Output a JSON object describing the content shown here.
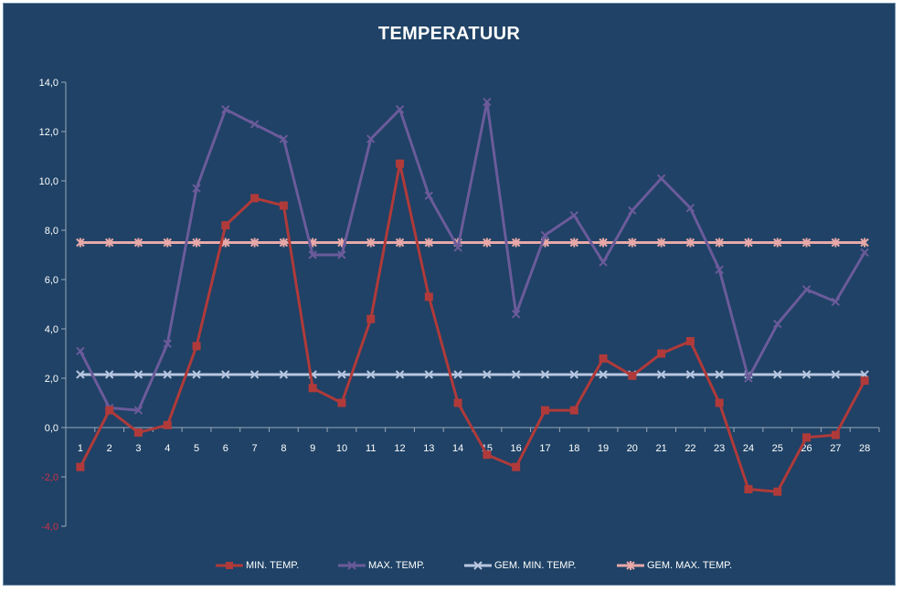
{
  "chart_data": {
    "type": "line",
    "title": "TEMPERATUUR",
    "xlabel": "",
    "ylabel": "",
    "x": [
      1,
      2,
      3,
      4,
      5,
      6,
      7,
      8,
      9,
      10,
      11,
      12,
      13,
      14,
      15,
      16,
      17,
      18,
      19,
      20,
      21,
      22,
      23,
      24,
      25,
      26,
      27,
      28
    ],
    "x_tick_labels": [
      "1",
      "2",
      "3",
      "4",
      "5",
      "6",
      "7",
      "8",
      "9",
      "10",
      "11",
      "12",
      "13",
      "14",
      "15",
      "16",
      "17",
      "18",
      "19",
      "20",
      "21",
      "22",
      "23",
      "24",
      "25",
      "26",
      "27",
      "28"
    ],
    "ylim": [
      -4,
      14
    ],
    "y_ticks": [
      14,
      12,
      10,
      8,
      6,
      4,
      2,
      0,
      -2,
      -4
    ],
    "y_tick_labels": [
      "14,0",
      "12,0",
      "10,0",
      "8,0",
      "6,0",
      "4,0",
      "2,0",
      "0,0",
      "-2,0",
      "-4,0"
    ],
    "grid": false,
    "legend_position": "bottom",
    "series": [
      {
        "name": "MIN. TEMP.",
        "color": "#b03a3a",
        "marker": "square",
        "values": [
          -1.6,
          0.7,
          -0.2,
          0.1,
          3.3,
          8.2,
          9.3,
          9.0,
          1.6,
          1.0,
          4.4,
          10.7,
          5.3,
          1.0,
          -1.1,
          -1.6,
          0.7,
          0.7,
          2.8,
          2.1,
          3.0,
          3.5,
          1.0,
          -2.5,
          -2.6,
          -0.4,
          -0.3,
          1.9
        ]
      },
      {
        "name": "MAX. TEMP.",
        "color": "#6b5b9a",
        "marker": "x",
        "values": [
          3.1,
          0.8,
          0.7,
          3.4,
          9.7,
          12.9,
          12.3,
          11.7,
          7.0,
          7.0,
          11.7,
          12.9,
          9.4,
          7.3,
          13.2,
          4.6,
          7.8,
          8.6,
          6.7,
          8.8,
          10.1,
          8.9,
          6.4,
          2.0,
          4.2,
          5.6,
          5.1,
          7.1
        ]
      },
      {
        "name": "GEM. MIN. TEMP.",
        "color": "#b8c6e0",
        "marker": "x",
        "values": [
          2.15,
          2.15,
          2.15,
          2.15,
          2.15,
          2.15,
          2.15,
          2.15,
          2.15,
          2.15,
          2.15,
          2.15,
          2.15,
          2.15,
          2.15,
          2.15,
          2.15,
          2.15,
          2.15,
          2.15,
          2.15,
          2.15,
          2.15,
          2.15,
          2.15,
          2.15,
          2.15,
          2.15
        ]
      },
      {
        "name": "GEM. MAX. TEMP.",
        "color": "#e8a8a8",
        "marker": "star",
        "values": [
          7.5,
          7.5,
          7.5,
          7.5,
          7.5,
          7.5,
          7.5,
          7.5,
          7.5,
          7.5,
          7.5,
          7.5,
          7.5,
          7.5,
          7.5,
          7.5,
          7.5,
          7.5,
          7.5,
          7.5,
          7.5,
          7.5,
          7.5,
          7.5,
          7.5,
          7.5,
          7.5,
          7.5
        ]
      }
    ],
    "colors": {
      "background": "#1f4266",
      "axis": "#9aa8b8",
      "tick_text": "#ffffff",
      "negative_tick_text": "#d0304a"
    }
  }
}
